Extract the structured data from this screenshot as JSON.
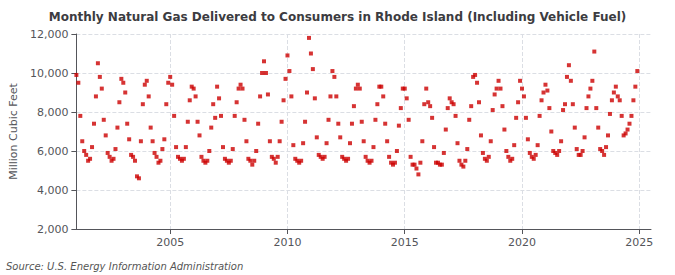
{
  "chart_data": {
    "type": "scatter",
    "title": "Monthly Natural Gas Delivered to Consumers in Rhode Island (Including Vehicle Fuel)",
    "ylabel": "Million Cubic Feet",
    "annotations": [
      "Source: U.S. Energy Information Administration"
    ],
    "color": "#cc0000",
    "marker": "square",
    "grid": true,
    "xlim": [
      2001.0,
      2025.5
    ],
    "xticks": [
      2005,
      2010,
      2015,
      2020,
      2025
    ],
    "ylim": [
      2000,
      12000
    ],
    "yticks": [
      {
        "value": 2000,
        "label": "2,000"
      },
      {
        "value": 4000,
        "label": "4,000"
      },
      {
        "value": 6000,
        "label": "6,000"
      },
      {
        "value": 8000,
        "label": "8,000"
      },
      {
        "value": 10000,
        "label": "10,000"
      },
      {
        "value": 12000,
        "label": "12,000"
      }
    ],
    "x": [
      2001.0,
      2001.083,
      2001.167,
      2001.25,
      2001.333,
      2001.417,
      2001.5,
      2001.583,
      2001.667,
      2001.75,
      2001.833,
      2001.917,
      2002.0,
      2002.083,
      2002.167,
      2002.25,
      2002.333,
      2002.417,
      2002.5,
      2002.583,
      2002.667,
      2002.75,
      2002.833,
      2002.917,
      2003.0,
      2003.083,
      2003.167,
      2003.25,
      2003.333,
      2003.417,
      2003.5,
      2003.583,
      2003.667,
      2003.75,
      2003.833,
      2003.917,
      2004.0,
      2004.083,
      2004.167,
      2004.25,
      2004.333,
      2004.417,
      2004.5,
      2004.583,
      2004.667,
      2004.75,
      2004.833,
      2004.917,
      2005.0,
      2005.083,
      2005.167,
      2005.25,
      2005.333,
      2005.417,
      2005.5,
      2005.583,
      2005.667,
      2005.75,
      2005.833,
      2005.917,
      2006.0,
      2006.083,
      2006.167,
      2006.25,
      2006.333,
      2006.417,
      2006.5,
      2006.583,
      2006.667,
      2006.75,
      2006.833,
      2006.917,
      2007.0,
      2007.083,
      2007.167,
      2007.25,
      2007.333,
      2007.417,
      2007.5,
      2007.583,
      2007.667,
      2007.75,
      2007.833,
      2007.917,
      2008.0,
      2008.083,
      2008.167,
      2008.25,
      2008.333,
      2008.417,
      2008.5,
      2008.583,
      2008.667,
      2008.75,
      2008.833,
      2008.917,
      2009.0,
      2009.083,
      2009.167,
      2009.25,
      2009.333,
      2009.417,
      2009.5,
      2009.583,
      2009.667,
      2009.75,
      2009.833,
      2009.917,
      2010.0,
      2010.083,
      2010.167,
      2010.25,
      2010.333,
      2010.417,
      2010.5,
      2010.583,
      2010.667,
      2010.75,
      2010.833,
      2010.917,
      2011.0,
      2011.083,
      2011.167,
      2011.25,
      2011.333,
      2011.417,
      2011.5,
      2011.583,
      2011.667,
      2011.75,
      2011.833,
      2011.917,
      2012.0,
      2012.083,
      2012.167,
      2012.25,
      2012.333,
      2012.417,
      2012.5,
      2012.583,
      2012.667,
      2012.75,
      2012.833,
      2012.917,
      2013.0,
      2013.083,
      2013.167,
      2013.25,
      2013.333,
      2013.417,
      2013.5,
      2013.583,
      2013.667,
      2013.75,
      2013.833,
      2013.917,
      2014.0,
      2014.083,
      2014.167,
      2014.25,
      2014.333,
      2014.417,
      2014.5,
      2014.583,
      2014.667,
      2014.75,
      2014.833,
      2014.917,
      2015.0,
      2015.083,
      2015.167,
      2015.25,
      2015.333,
      2015.417,
      2015.5,
      2015.583,
      2015.667,
      2015.75,
      2015.833,
      2015.917,
      2016.0,
      2016.083,
      2016.167,
      2016.25,
      2016.333,
      2016.417,
      2016.5,
      2016.583,
      2016.667,
      2016.75,
      2016.833,
      2016.917,
      2017.0,
      2017.083,
      2017.167,
      2017.25,
      2017.333,
      2017.417,
      2017.5,
      2017.583,
      2017.667,
      2017.75,
      2017.833,
      2017.917,
      2018.0,
      2018.083,
      2018.167,
      2018.25,
      2018.333,
      2018.417,
      2018.5,
      2018.583,
      2018.667,
      2018.75,
      2018.833,
      2018.917,
      2019.0,
      2019.083,
      2019.167,
      2019.25,
      2019.333,
      2019.417,
      2019.5,
      2019.583,
      2019.667,
      2019.75,
      2019.833,
      2019.917,
      2020.0,
      2020.083,
      2020.167,
      2020.25,
      2020.333,
      2020.417,
      2020.5,
      2020.583,
      2020.667,
      2020.75,
      2020.833,
      2020.917,
      2021.0,
      2021.083,
      2021.167,
      2021.25,
      2021.333,
      2021.417,
      2021.5,
      2021.583,
      2021.667,
      2021.75,
      2021.833,
      2021.917,
      2022.0,
      2022.083,
      2022.167,
      2022.25,
      2022.333,
      2022.417,
      2022.5,
      2022.583,
      2022.667,
      2022.75,
      2022.833,
      2022.917,
      2023.0,
      2023.083,
      2023.167,
      2023.25,
      2023.333,
      2023.417,
      2023.5,
      2023.583,
      2023.667,
      2023.75,
      2023.833,
      2023.917,
      2024.0,
      2024.083,
      2024.167,
      2024.25,
      2024.333,
      2024.417,
      2024.5,
      2024.583,
      2024.667,
      2024.75,
      2024.833,
      2024.917
    ],
    "values": [
      9900,
      9500,
      7800,
      6500,
      6000,
      5800,
      5500,
      5600,
      6200,
      7400,
      8800,
      10500,
      9800,
      9200,
      7600,
      6800,
      5900,
      5700,
      5500,
      5600,
      6100,
      7200,
      8500,
      9700,
      9500,
      9000,
      7400,
      6600,
      5800,
      5700,
      5500,
      4700,
      4600,
      6500,
      8400,
      9400,
      9600,
      8800,
      7200,
      6500,
      5900,
      5700,
      5400,
      5500,
      6100,
      6600,
      8400,
      9500,
      9800,
      9400,
      7800,
      6200,
      5700,
      5600,
      5500,
      5600,
      6200,
      7500,
      8600,
      9300,
      9200,
      8800,
      7500,
      6800,
      5700,
      5500,
      5400,
      5500,
      6000,
      7200,
      8400,
      7700,
      9300,
      8700,
      7800,
      6200,
      5600,
      5500,
      5400,
      5500,
      6100,
      7800,
      8500,
      9200,
      9400,
      9200,
      7600,
      6500,
      5600,
      5500,
      5300,
      5500,
      6000,
      7400,
      8800,
      10000,
      10600,
      10000,
      8900,
      6500,
      5700,
      5600,
      5400,
      5700,
      6500,
      7500,
      8600,
      9700,
      10900,
      10100,
      8800,
      6300,
      5600,
      5500,
      5400,
      5500,
      6400,
      7500,
      9000,
      11800,
      11000,
      10200,
      8700,
      6700,
      5800,
      5700,
      5600,
      5700,
      6400,
      7600,
      8800,
      10100,
      9800,
      8800,
      7400,
      6700,
      5700,
      5600,
      5500,
      5600,
      6400,
      7400,
      8300,
      9200,
      9400,
      9200,
      7500,
      6500,
      5700,
      5500,
      5400,
      5500,
      6200,
      7600,
      8400,
      9300,
      9300,
      8800,
      7400,
      6500,
      5700,
      5400,
      5300,
      5400,
      6000,
      7300,
      8200,
      9200,
      9200,
      8700,
      7600,
      5700,
      5300,
      5300,
      5100,
      4800,
      5400,
      6500,
      8400,
      9200,
      8500,
      8300,
      7700,
      6200,
      5400,
      5400,
      5300,
      5300,
      5900,
      7100,
      8200,
      8700,
      8500,
      8400,
      7800,
      6400,
      5500,
      5300,
      5200,
      5500,
      6100,
      7600,
      8300,
      9800,
      9900,
      9500,
      8500,
      6800,
      5900,
      5600,
      5500,
      5700,
      6500,
      8100,
      8900,
      9200,
      9600,
      9200,
      8300,
      7100,
      6000,
      5700,
      5500,
      5600,
      6300,
      7700,
      8500,
      9600,
      9200,
      8800,
      7700,
      6600,
      5900,
      5700,
      5600,
      5800,
      6300,
      7800,
      8600,
      9000,
      9400,
      9100,
      8200,
      7000,
      6000,
      5900,
      5800,
      6000,
      6500,
      8100,
      8400,
      9800,
      10400,
      9600,
      8400,
      7200,
      6100,
      5800,
      5800,
      6000,
      6700,
      8200,
      8800,
      9200,
      9600,
      11100,
      8200,
      7200,
      6100,
      6000,
      5800,
      6200,
      6800,
      7900,
      8600,
      9000,
      9300,
      8800,
      8600,
      7800,
      6800,
      6900,
      7100,
      7400,
      7800,
      8600,
      9300,
      10100
    ]
  }
}
